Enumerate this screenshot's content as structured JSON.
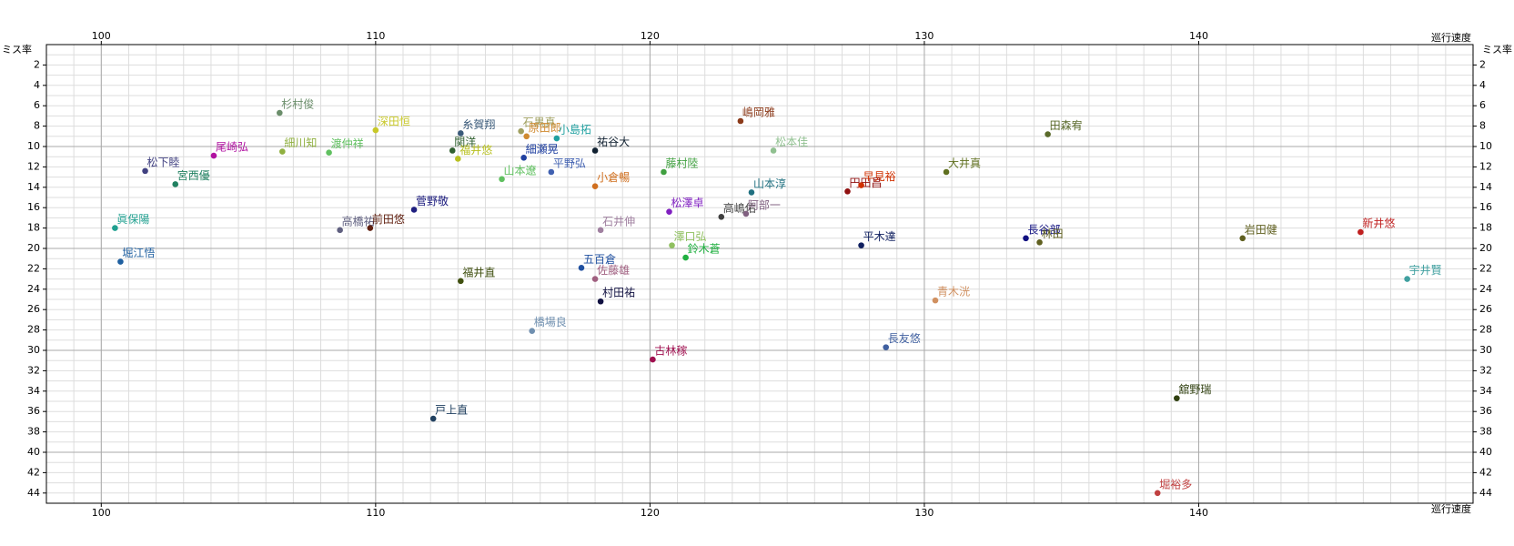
{
  "chart_data": {
    "type": "scatter",
    "x_label": "巡行速度",
    "y_label": "ミス率",
    "xlim": [
      98,
      150
    ],
    "ylim": [
      0,
      45
    ],
    "y_inverted": true,
    "grid": true,
    "xticks": [
      100,
      110,
      120,
      130,
      140
    ],
    "yticks": [
      2,
      4,
      6,
      8,
      10,
      12,
      14,
      16,
      18,
      20,
      22,
      24,
      26,
      28,
      30,
      32,
      34,
      36,
      38,
      40,
      42,
      44
    ],
    "point_labels": [
      "杉村俊",
      "深田恒",
      "糸賀翔",
      "石黒真",
      "原田郎",
      "小島拓",
      "嶋岡雅",
      "田森宥",
      "尾崎弘",
      "細川知",
      "渡仲祥",
      "関洋",
      "福井悠",
      "細瀬晃",
      "祐谷大",
      "松本佳",
      "松下睦",
      "宮西優",
      "平野弘",
      "藤村陸",
      "大井真",
      "山本遼",
      "小倉暢",
      "山本淳",
      "円田昌",
      "早見裕",
      "菅野敬",
      "松澤卓",
      "高嶋佑",
      "阿部一",
      "眞保陽",
      "高橋祐",
      "前田悠",
      "石井伸",
      "長谷部",
      "林田",
      "岩田健",
      "新井悠",
      "平木達",
      "澤口弘",
      "鈴木蒼",
      "堀江悟",
      "五百倉",
      "佐藤雄",
      "福井直",
      "宇井賢",
      "村田祐",
      "青木洸",
      "橋場良",
      "長友悠",
      "古林稼",
      "舘野瑞",
      "戸上直",
      "堀裕多"
    ],
    "x": [
      106.5,
      110.0,
      113.1,
      115.3,
      115.5,
      116.6,
      123.3,
      134.5,
      104.1,
      106.6,
      108.3,
      112.8,
      113.0,
      115.4,
      118.0,
      124.5,
      101.6,
      102.7,
      116.4,
      120.5,
      130.8,
      114.6,
      118.0,
      123.7,
      127.2,
      127.7,
      111.4,
      120.7,
      122.6,
      123.5,
      100.5,
      108.7,
      109.8,
      118.2,
      133.7,
      134.2,
      141.6,
      145.9,
      127.7,
      120.8,
      121.3,
      100.7,
      117.5,
      118.0,
      113.1,
      147.6,
      118.2,
      130.4,
      115.7,
      128.6,
      120.1,
      139.2,
      112.1,
      138.5
    ],
    "values": [
      6.7,
      8.4,
      8.7,
      8.5,
      9.0,
      9.2,
      7.5,
      8.8,
      10.9,
      10.5,
      10.6,
      10.4,
      11.2,
      11.1,
      10.4,
      10.4,
      12.4,
      13.7,
      12.5,
      12.5,
      12.5,
      13.2,
      13.9,
      14.5,
      14.4,
      13.8,
      16.2,
      16.4,
      16.9,
      16.6,
      18.0,
      18.2,
      18.0,
      18.2,
      19.0,
      19.4,
      19.0,
      18.4,
      19.7,
      19.7,
      20.9,
      21.3,
      21.9,
      23.0,
      23.2,
      23.0,
      25.2,
      25.1,
      28.1,
      29.7,
      30.9,
      34.7,
      36.7,
      44.0
    ],
    "colors": [
      "#6b8e6b",
      "#c8c828",
      "#3a5a7a",
      "#a0a060",
      "#d08a30",
      "#20a0a0",
      "#8b3a1a",
      "#5a6a2a",
      "#b010a0",
      "#90b040",
      "#60c060",
      "#306030",
      "#b8c020",
      "#2040a0",
      "#102030",
      "#90c090",
      "#404080",
      "#208060",
      "#4060b0",
      "#40a040",
      "#607020",
      "#60c060",
      "#d07020",
      "#207080",
      "#901010",
      "#d03000",
      "#202080",
      "#8020c0",
      "#404040",
      "#806080",
      "#20a090",
      "#606080",
      "#602010",
      "#a080a0",
      "#101080",
      "#606020",
      "#606020",
      "#c02020",
      "#102060",
      "#90c060",
      "#20b040",
      "#2060a0",
      "#2050a0",
      "#a06080",
      "#405010",
      "#40a0a0",
      "#101040",
      "#d09060",
      "#7090b0",
      "#4060a0",
      "#a01050",
      "#304010",
      "#204060",
      "#c04040"
    ]
  }
}
